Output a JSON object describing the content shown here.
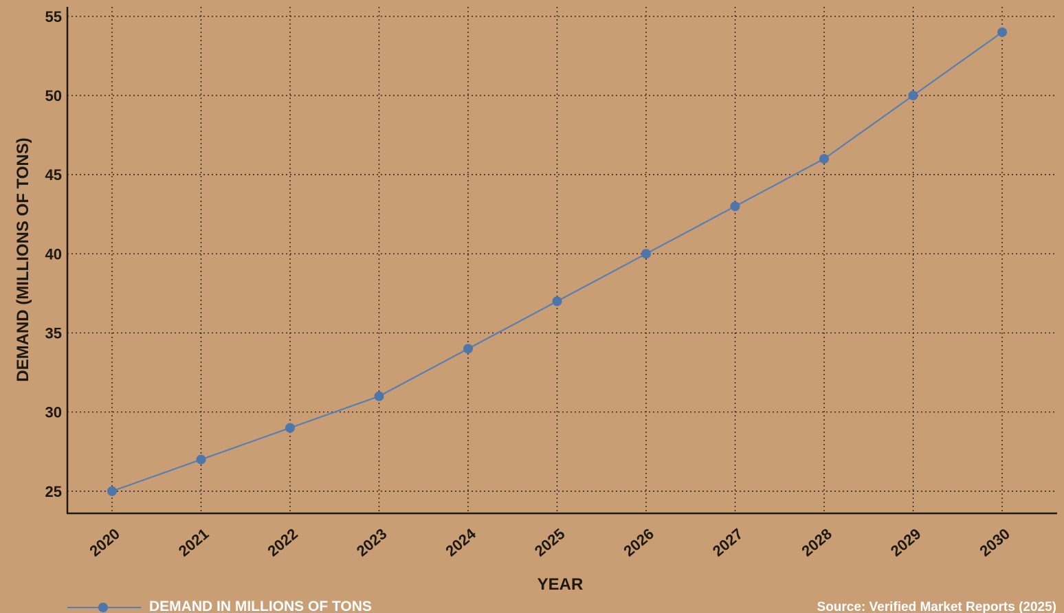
{
  "colors": {
    "background": "#c99e75",
    "series": "#5a7eaf",
    "marker": "#4f76ab",
    "grid": "#2a2018",
    "text": "#1e1812",
    "legend_text": "#ffffff"
  },
  "chart_data": {
    "type": "line",
    "title": "",
    "xlabel": "YEAR",
    "ylabel": "DEMAND (MILLIONS OF TONS)",
    "x": [
      "2020",
      "2021",
      "2022",
      "2023",
      "2024",
      "2025",
      "2026",
      "2027",
      "2028",
      "2029",
      "2030"
    ],
    "series": [
      {
        "name": "DEMAND IN MILLIONS OF TONS",
        "values": [
          25,
          27,
          29,
          31,
          34,
          37,
          40,
          43,
          46,
          50,
          54
        ]
      }
    ],
    "y_ticks": [
      25,
      30,
      35,
      40,
      45,
      50,
      55
    ],
    "ylim": [
      23.6,
      55.6
    ],
    "grid": true,
    "legend_position": "bottom-left",
    "source": "Source: Verified Market Reports (2025)"
  }
}
